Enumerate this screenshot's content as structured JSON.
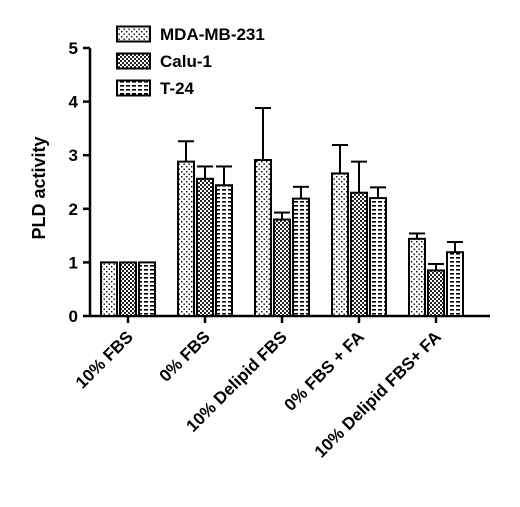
{
  "chart_data": {
    "type": "bar",
    "ylabel": "PLD activity",
    "xlabel": "",
    "ylim": [
      0,
      5
    ],
    "yticks": [
      "0",
      "1",
      "2",
      "3",
      "4",
      "5"
    ],
    "categories": [
      "10% FBS",
      "0% FBS",
      "10% Delipid FBS",
      "0%  FBS + FA",
      "10% Delipid FBS+ FA"
    ],
    "series": [
      {
        "name": "MDA-MB-231",
        "pattern": "dots-sparse",
        "values": [
          1.0,
          2.88,
          2.91,
          2.66,
          1.44
        ],
        "errors": [
          0,
          0.38,
          0.97,
          0.53,
          0.1
        ]
      },
      {
        "name": "Calu-1",
        "pattern": "checker",
        "values": [
          1.0,
          2.56,
          1.8,
          2.3,
          0.85
        ],
        "errors": [
          0,
          0.23,
          0.13,
          0.58,
          0.12
        ]
      },
      {
        "name": "T-24",
        "pattern": "dashes",
        "values": [
          1.0,
          2.44,
          2.19,
          2.2,
          1.19
        ],
        "errors": [
          0,
          0.35,
          0.22,
          0.2,
          0.19
        ]
      }
    ],
    "legend_position": "top-left",
    "grid": false,
    "colors": {
      "fill": "#ffffff",
      "stroke": "#000000",
      "pattern": "#000000"
    }
  }
}
